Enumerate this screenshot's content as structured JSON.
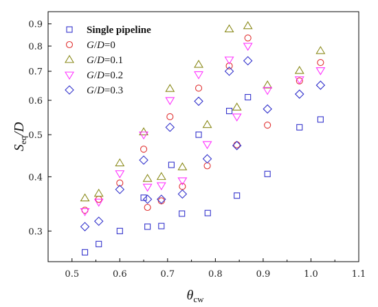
{
  "chart_data": {
    "type": "scatter",
    "xlabel_main": "θ",
    "xlabel_sub": "cw",
    "ylabel_main": "S",
    "ylabel_sub": "eq",
    "ylabel_tail": "/D",
    "xlim": [
      0.45,
      1.1
    ],
    "ylim": [
      0.255,
      0.96
    ],
    "y_scale": "log",
    "x_ticks": [
      "0.5",
      "0.6",
      "0.7",
      "0.8",
      "0.9",
      "1.0",
      "1.1"
    ],
    "y_ticks": [
      "0.3",
      "0.4",
      "0.5",
      "0.6",
      "0.7",
      "0.8",
      "0.9"
    ],
    "legend_position": "top-left",
    "series": [
      {
        "name": "Single pipeline",
        "legend_parts": [
          {
            "text": "Single pipeline",
            "style": "bold"
          }
        ],
        "marker": "square",
        "color": "#3333cc",
        "points": [
          [
            0.527,
            0.268
          ],
          [
            0.556,
            0.28
          ],
          [
            0.6,
            0.3
          ],
          [
            0.65,
            0.358
          ],
          [
            0.658,
            0.307
          ],
          [
            0.687,
            0.308
          ],
          [
            0.708,
            0.426
          ],
          [
            0.73,
            0.329
          ],
          [
            0.765,
            0.5
          ],
          [
            0.784,
            0.33
          ],
          [
            0.829,
            0.567
          ],
          [
            0.845,
            0.362
          ],
          [
            0.868,
            0.61
          ],
          [
            0.909,
            0.406
          ],
          [
            0.976,
            0.52
          ],
          [
            1.02,
            0.542
          ]
        ]
      },
      {
        "name": "G/D=0",
        "legend_parts": [
          {
            "text": "G",
            "style": "italic"
          },
          {
            "text": "/",
            "style": "normal"
          },
          {
            "text": "D",
            "style": "italic"
          },
          {
            "text": "=0",
            "style": "normal"
          }
        ],
        "marker": "circle",
        "color": "#e03030",
        "points": [
          [
            0.527,
            0.335
          ],
          [
            0.556,
            0.355
          ],
          [
            0.6,
            0.387
          ],
          [
            0.65,
            0.463
          ],
          [
            0.658,
            0.34
          ],
          [
            0.687,
            0.352
          ],
          [
            0.705,
            0.55
          ],
          [
            0.731,
            0.38
          ],
          [
            0.765,
            0.64
          ],
          [
            0.783,
            0.424
          ],
          [
            0.829,
            0.72
          ],
          [
            0.845,
            0.474
          ],
          [
            0.868,
            0.835
          ],
          [
            0.909,
            0.526
          ],
          [
            0.976,
            0.665
          ],
          [
            1.02,
            0.733
          ]
        ]
      },
      {
        "name": "G/D=0.1",
        "legend_parts": [
          {
            "text": "G",
            "style": "italic"
          },
          {
            "text": "/",
            "style": "normal"
          },
          {
            "text": "D",
            "style": "italic"
          },
          {
            "text": "=0.1",
            "style": "normal"
          }
        ],
        "marker": "triangle-up",
        "color": "#8a8a1a",
        "points": [
          [
            0.527,
            0.357
          ],
          [
            0.556,
            0.366
          ],
          [
            0.6,
            0.43
          ],
          [
            0.65,
            0.507
          ],
          [
            0.658,
            0.396
          ],
          [
            0.687,
            0.4
          ],
          [
            0.705,
            0.638
          ],
          [
            0.731,
            0.421
          ],
          [
            0.765,
            0.725
          ],
          [
            0.783,
            0.527
          ],
          [
            0.829,
            0.875
          ],
          [
            0.845,
            0.578
          ],
          [
            0.868,
            0.89
          ],
          [
            0.909,
            0.65
          ],
          [
            0.976,
            0.702
          ],
          [
            1.02,
            0.78
          ]
        ]
      },
      {
        "name": "G/D=0.2",
        "legend_parts": [
          {
            "text": "G",
            "style": "italic"
          },
          {
            "text": "/",
            "style": "normal"
          },
          {
            "text": "D",
            "style": "italic"
          },
          {
            "text": "=0.2",
            "style": "normal"
          }
        ],
        "marker": "triangle-down",
        "color": "#ff33ff",
        "points": [
          [
            0.527,
            0.333
          ],
          [
            0.556,
            0.35
          ],
          [
            0.6,
            0.407
          ],
          [
            0.65,
            0.5
          ],
          [
            0.658,
            0.379
          ],
          [
            0.687,
            0.382
          ],
          [
            0.705,
            0.6
          ],
          [
            0.731,
            0.392
          ],
          [
            0.765,
            0.688
          ],
          [
            0.783,
            0.475
          ],
          [
            0.829,
            0.744
          ],
          [
            0.845,
            0.55
          ],
          [
            0.868,
            0.8
          ],
          [
            0.909,
            0.633
          ],
          [
            0.976,
            0.67
          ],
          [
            1.02,
            0.703
          ]
        ]
      },
      {
        "name": "G/D=0.3",
        "legend_parts": [
          {
            "text": "G",
            "style": "italic"
          },
          {
            "text": "/",
            "style": "normal"
          },
          {
            "text": "D",
            "style": "italic"
          },
          {
            "text": "=0.3",
            "style": "normal"
          }
        ],
        "marker": "diamond",
        "color": "#3333cc",
        "points": [
          [
            0.527,
            0.307
          ],
          [
            0.556,
            0.316
          ],
          [
            0.6,
            0.374
          ],
          [
            0.65,
            0.437
          ],
          [
            0.658,
            0.355
          ],
          [
            0.687,
            0.355
          ],
          [
            0.705,
            0.52
          ],
          [
            0.731,
            0.365
          ],
          [
            0.765,
            0.597
          ],
          [
            0.783,
            0.44
          ],
          [
            0.829,
            0.7
          ],
          [
            0.845,
            0.472
          ],
          [
            0.868,
            0.74
          ],
          [
            0.909,
            0.573
          ],
          [
            0.976,
            0.62
          ],
          [
            1.02,
            0.65
          ]
        ]
      }
    ]
  }
}
